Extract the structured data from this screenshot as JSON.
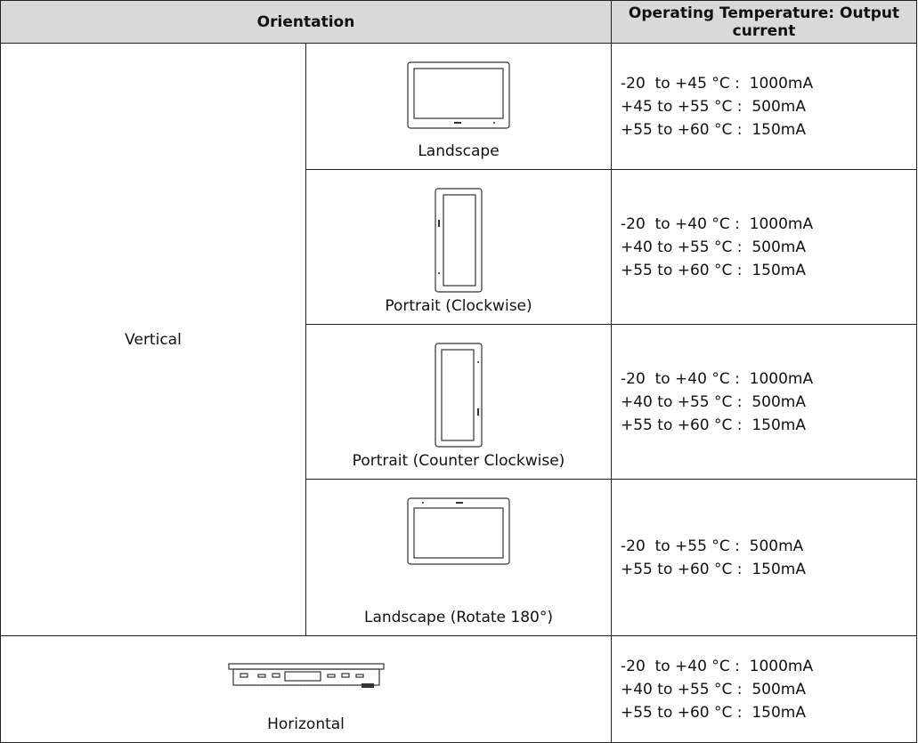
{
  "table": {
    "header": [
      "Orientation",
      "Operating Temperature: Output current"
    ],
    "group": "Vertical",
    "rows": [
      {
        "label": "Landscape",
        "lines": [
          "-20  to +45 °C :  1000mA",
          "+45 to +55 °C :  500mA",
          "+55 to +60 °C :  150mA"
        ]
      },
      {
        "label": "Portrait (Clockwise)",
        "lines": [
          "-20  to +40 °C :  1000mA",
          "+40 to +55 °C :  500mA",
          "+55 to +60 °C :  150mA"
        ]
      },
      {
        "label": "Portrait (Counter Clockwise)",
        "lines": [
          "-20  to +40 °C :  1000mA",
          "+40 to +55 °C :  500mA",
          "+55 to +60 °C :  150mA"
        ]
      },
      {
        "label": "Landscape (Rotate 180°)",
        "lines": [
          "-20  to +55 °C :  500mA",
          "+55 to +60 °C :  150mA"
        ]
      }
    ],
    "horizontal": {
      "label": "Horizontal",
      "lines": [
        "-20  to +40 °C :  1000mA",
        "+40 to +55 °C :  500mA",
        "+55 to +60 °C :  150mA"
      ]
    }
  }
}
